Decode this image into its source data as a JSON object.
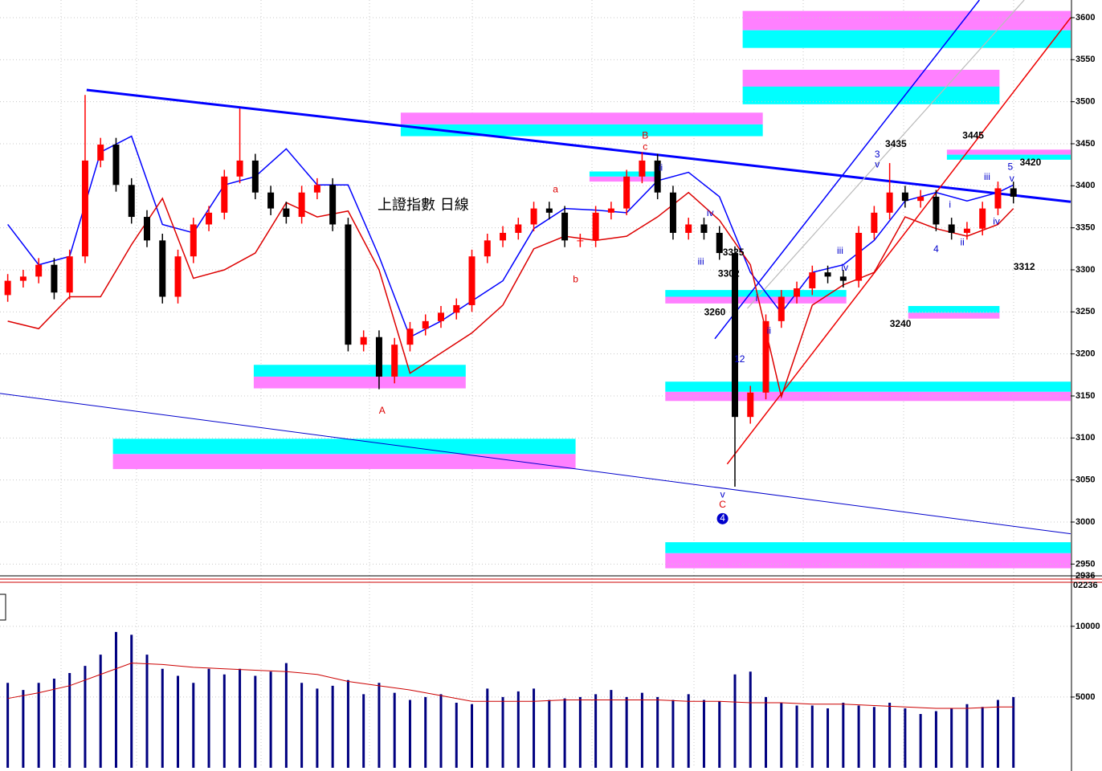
{
  "chart_data": {
    "type": "candlestick",
    "title": "上證指數 日線",
    "xlim": [
      -0.5,
      68.7
    ],
    "ylim": [
      2936,
      3621
    ],
    "yticks": [
      2936,
      2950,
      3000,
      3050,
      3100,
      3150,
      3200,
      3250,
      3300,
      3350,
      3400,
      3450,
      3500,
      3550,
      3600
    ],
    "grid": true,
    "up_color": "#ff0000",
    "down_color": "#000000",
    "open": [
      3270,
      3287,
      3292,
      3306,
      3273,
      3316,
      3430,
      3449,
      3401,
      3363,
      3335,
      3268,
      3316,
      3354,
      3368,
      3411,
      3430,
      3392,
      3373,
      3363,
      3392,
      3401,
      3354,
      3211,
      3220,
      3173,
      3211,
      3230,
      3239,
      3249,
      3258,
      3316,
      3335,
      3344,
      3354,
      3373,
      3368,
      3335,
      3335,
      3368,
      3373,
      3411,
      3430,
      3392,
      3344,
      3354,
      3344,
      3320,
      3125,
      3154,
      3239,
      3268,
      3278,
      3297,
      3292,
      3287,
      3344,
      3368,
      3392,
      3382,
      3387,
      3354,
      3344,
      3349,
      3373,
      3397
    ],
    "high": [
      3295,
      3300,
      3314,
      3314,
      3324,
      3508,
      3457,
      3457,
      3409,
      3371,
      3343,
      3324,
      3362,
      3376,
      3419,
      3492,
      3438,
      3400,
      3381,
      3400,
      3409,
      3409,
      3362,
      3228,
      3228,
      3219,
      3238,
      3247,
      3257,
      3266,
      3324,
      3343,
      3352,
      3362,
      3381,
      3381,
      3376,
      3343,
      3376,
      3381,
      3419,
      3440,
      3438,
      3400,
      3362,
      3362,
      3352,
      3328,
      3162,
      3247,
      3276,
      3286,
      3305,
      3305,
      3300,
      3352,
      3376,
      3427,
      3400,
      3395,
      3395,
      3362,
      3357,
      3381,
      3405,
      3405
    ],
    "low": [
      3262,
      3279,
      3284,
      3265,
      3265,
      3308,
      3422,
      3393,
      3355,
      3327,
      3260,
      3260,
      3308,
      3346,
      3360,
      3403,
      3384,
      3365,
      3355,
      3355,
      3384,
      3346,
      3203,
      3203,
      3158,
      3165,
      3203,
      3222,
      3231,
      3241,
      3250,
      3308,
      3327,
      3336,
      3346,
      3360,
      3327,
      3327,
      3327,
      3360,
      3365,
      3403,
      3384,
      3336,
      3336,
      3336,
      3312,
      3042,
      3117,
      3146,
      3231,
      3260,
      3270,
      3284,
      3279,
      3279,
      3336,
      3360,
      3374,
      3374,
      3346,
      3336,
      3336,
      3341,
      3365,
      3379
    ],
    "close": [
      3287,
      3292,
      3306,
      3273,
      3316,
      3430,
      3449,
      3401,
      3363,
      3335,
      3268,
      3316,
      3354,
      3368,
      3411,
      3430,
      3392,
      3373,
      3363,
      3392,
      3401,
      3354,
      3211,
      3220,
      3173,
      3211,
      3230,
      3239,
      3249,
      3258,
      3316,
      3335,
      3344,
      3354,
      3373,
      3368,
      3335,
      3335,
      3368,
      3373,
      3411,
      3430,
      3392,
      3344,
      3354,
      3344,
      3320,
      3125,
      3154,
      3239,
      3268,
      3278,
      3297,
      3292,
      3287,
      3344,
      3368,
      3392,
      3382,
      3387,
      3354,
      3344,
      3349,
      3373,
      3397,
      3387
    ],
    "bands": [
      {
        "color": "#0000ff",
        "x": [
          0,
          2,
          4,
          6,
          8,
          10,
          12,
          14,
          16,
          18,
          20,
          22,
          24,
          26,
          28,
          30,
          32,
          34,
          36,
          38,
          40,
          42,
          44,
          46,
          48,
          50,
          52,
          54,
          56,
          58,
          60,
          62,
          64,
          65
        ],
        "values": [
          3354,
          3306,
          3316,
          3440,
          3459,
          3354,
          3344,
          3401,
          3411,
          3444,
          3401,
          3401,
          3316,
          3220,
          3239,
          3263,
          3287,
          3349,
          3373,
          3371,
          3368,
          3406,
          3416,
          3387,
          3297,
          3249,
          3297,
          3306,
          3335,
          3382,
          3392,
          3382,
          3392,
          3401
        ]
      },
      {
        "color": "#dd0000",
        "x": [
          0,
          2,
          4,
          6,
          8,
          10,
          12,
          14,
          16,
          18,
          20,
          22,
          24,
          26,
          28,
          30,
          32,
          34,
          36,
          38,
          40,
          42,
          44,
          46,
          48,
          50,
          52,
          54,
          56,
          58,
          60,
          62,
          64,
          65
        ],
        "values": [
          3239,
          3230,
          3268,
          3268,
          3330,
          3385,
          3290,
          3300,
          3320,
          3380,
          3363,
          3370,
          3300,
          3177,
          3201,
          3225,
          3258,
          3325,
          3340,
          3335,
          3340,
          3363,
          3392,
          3359,
          3306,
          3149,
          3258,
          3282,
          3297,
          3363,
          3349,
          3340,
          3354,
          3373
        ]
      }
    ],
    "trendlines": [
      {
        "color": "#0000ff",
        "width": 3,
        "x": [
          5.1,
          68.7
        ],
        "values": [
          3514,
          3381
        ]
      },
      {
        "color": "#0000cc",
        "width": 1,
        "x": [
          -0.5,
          68.7
        ],
        "values": [
          3153,
          2986
        ]
      },
      {
        "color": "#0000ff",
        "width": 1.5,
        "x": [
          45.7,
          62.8
        ],
        "values": [
          3218,
          3621
        ]
      },
      {
        "color": "#ee0000",
        "width": 1.5,
        "x": [
          46.5,
          68.7
        ],
        "values": [
          3069,
          3600
        ]
      },
      {
        "color": "#bbbbbb",
        "width": 1.2,
        "x": [
          47.8,
          65.7
        ],
        "values": [
          3254,
          3621
        ]
      }
    ],
    "zones": [
      {
        "x": [
          47.5,
          68.7
        ],
        "magenta": [
          3585,
          3608
        ],
        "cyan": [
          3564,
          3585
        ]
      },
      {
        "x": [
          47.5,
          64.1
        ],
        "magenta": [
          3517,
          3538
        ],
        "cyan": [
          3497,
          3518
        ]
      },
      {
        "x": [
          25.4,
          48.8
        ],
        "magenta": [
          3473,
          3487
        ],
        "cyan": [
          3459,
          3473
        ]
      },
      {
        "x": [
          15.9,
          29.6
        ],
        "magenta": [
          3159,
          3173
        ],
        "cyan": [
          3173,
          3187
        ]
      },
      {
        "x": [
          6.8,
          36.7
        ],
        "magenta": [
          3063,
          3081
        ],
        "cyan": [
          3081,
          3099
        ]
      },
      {
        "x": [
          42.5,
          54.2
        ],
        "magenta": [
          3260,
          3268
        ],
        "cyan": [
          3268,
          3276
        ]
      },
      {
        "x": [
          42.5,
          68.7
        ],
        "magenta": [
          3144,
          3155
        ],
        "cyan": [
          3155,
          3167
        ]
      },
      {
        "x": [
          42.5,
          68.7
        ],
        "magenta": [
          2945,
          2963
        ],
        "cyan": [
          2963,
          2976
        ]
      },
      {
        "x": [
          58.2,
          64.1
        ],
        "magenta": [
          3242,
          3249
        ],
        "cyan": [
          3249,
          3257
        ]
      },
      {
        "x": [
          37.6,
          41.9
        ],
        "magenta": [
          3405,
          3411
        ],
        "cyan": [
          3411,
          3417
        ]
      },
      {
        "x": [
          60.7,
          68.7
        ],
        "magenta": [
          3437,
          3443
        ],
        "cyan": [
          3431,
          3437
        ]
      }
    ],
    "annotations": [
      {
        "text": "A",
        "x": 24.2,
        "y": 3132,
        "color": "#dd0000"
      },
      {
        "text": "a",
        "x": 35.4,
        "y": 3395,
        "color": "#dd0000"
      },
      {
        "text": "b",
        "x": 36.7,
        "y": 3288,
        "color": "#dd0000"
      },
      {
        "text": "B",
        "x": 41.2,
        "y": 3459,
        "color": "#dd0000"
      },
      {
        "text": "c",
        "x": 41.2,
        "y": 3446,
        "color": "#dd0000"
      },
      {
        "text": "ii",
        "x": 42.2,
        "y": 3421,
        "color": "#0000cc"
      },
      {
        "text": "iv",
        "x": 45.4,
        "y": 3367,
        "color": "#0000cc"
      },
      {
        "text": "iii",
        "x": 44.8,
        "y": 3309,
        "color": "#0000cc"
      },
      {
        "text": "v",
        "x": 46.2,
        "y": 3032,
        "color": "#0000cc"
      },
      {
        "text": "C",
        "x": 46.2,
        "y": 3020,
        "color": "#dd0000"
      },
      {
        "text": "4",
        "x": 46.2,
        "y": 3004,
        "color": "#ffffff",
        "circled": true
      },
      {
        "text": "12",
        "x": 47.3,
        "y": 3193,
        "color": "#0000cc"
      },
      {
        "text": "i",
        "x": 48.4,
        "y": 3266,
        "color": "#0000cc"
      },
      {
        "text": "ii",
        "x": 49.2,
        "y": 3227,
        "color": "#0000cc"
      },
      {
        "text": "iii",
        "x": 53.8,
        "y": 3322,
        "color": "#0000cc"
      },
      {
        "text": "iv",
        "x": 54.1,
        "y": 3302,
        "color": "#0000cc"
      },
      {
        "text": "3",
        "x": 56.2,
        "y": 3437,
        "color": "#0000cc"
      },
      {
        "text": "v",
        "x": 56.2,
        "y": 3425,
        "color": "#0000cc"
      },
      {
        "text": "4",
        "x": 60.0,
        "y": 3324,
        "color": "#0000cc"
      },
      {
        "text": "i",
        "x": 60.9,
        "y": 3377,
        "color": "#0000cc"
      },
      {
        "text": "ii",
        "x": 61.7,
        "y": 3332,
        "color": "#0000cc"
      },
      {
        "text": "iii",
        "x": 63.3,
        "y": 3410,
        "color": "#0000cc"
      },
      {
        "text": "iv",
        "x": 63.9,
        "y": 3357,
        "color": "#0000cc"
      },
      {
        "text": "5",
        "x": 64.8,
        "y": 3422,
        "color": "#0000cc"
      },
      {
        "text": "v",
        "x": 64.9,
        "y": 3408,
        "color": "#0000cc"
      },
      {
        "text": "3435",
        "x": 57.4,
        "y": 3449,
        "color": "#000000",
        "bold": true
      },
      {
        "text": "3445",
        "x": 62.4,
        "y": 3459,
        "color": "#000000",
        "bold": true
      },
      {
        "text": "3420",
        "x": 66.1,
        "y": 3427,
        "color": "#000000",
        "bold": true
      },
      {
        "text": "3325",
        "x": 46.9,
        "y": 3320,
        "color": "#000000",
        "bold": true
      },
      {
        "text": "3302",
        "x": 46.6,
        "y": 3295,
        "color": "#000000",
        "bold": true
      },
      {
        "text": "3260",
        "x": 45.7,
        "y": 3249,
        "color": "#000000",
        "bold": true
      },
      {
        "text": "3240",
        "x": 57.7,
        "y": 3235,
        "color": "#000000",
        "bold": true
      },
      {
        "text": "3312",
        "x": 65.7,
        "y": 3303,
        "color": "#000000",
        "bold": true
      }
    ],
    "volume": {
      "label": "02236",
      "ylim": [
        0,
        13000
      ],
      "yticks": [
        5000,
        10000
      ],
      "color": "#000080",
      "values": [
        6000,
        5500,
        6000,
        6300,
        6700,
        7200,
        8000,
        9600,
        9400,
        8000,
        7000,
        6500,
        6000,
        7000,
        6600,
        7000,
        6500,
        6800,
        7400,
        6000,
        5600,
        5800,
        6200,
        5200,
        6000,
        5300,
        4800,
        5000,
        5200,
        4600,
        4500,
        5600,
        5000,
        5400,
        5600,
        4800,
        4900,
        5000,
        5200,
        5500,
        5000,
        5300,
        5000,
        4800,
        5200,
        4800,
        4700,
        6600,
        6800,
        5000,
        4600,
        4400,
        4400,
        4200,
        4600,
        4400,
        4300,
        4600,
        4200,
        3800,
        4000,
        4200,
        4500,
        4300,
        4800,
        5000
      ],
      "average": {
        "color": "#cc0000",
        "x": [
          0,
          2,
          4,
          6,
          8,
          10,
          12,
          14,
          16,
          18,
          20,
          22,
          24,
          26,
          28,
          30,
          32,
          34,
          36,
          38,
          40,
          42,
          44,
          46,
          48,
          50,
          52,
          54,
          56,
          58,
          60,
          62,
          64,
          65
        ],
        "values": [
          4900,
          5300,
          5800,
          6600,
          7400,
          7300,
          7100,
          7000,
          6900,
          6800,
          6600,
          6100,
          5800,
          5500,
          5100,
          4700,
          4700,
          4700,
          4800,
          4800,
          4800,
          4800,
          4700,
          4700,
          4600,
          4600,
          4500,
          4500,
          4400,
          4300,
          4200,
          4200,
          4300,
          4300
        ]
      }
    }
  }
}
